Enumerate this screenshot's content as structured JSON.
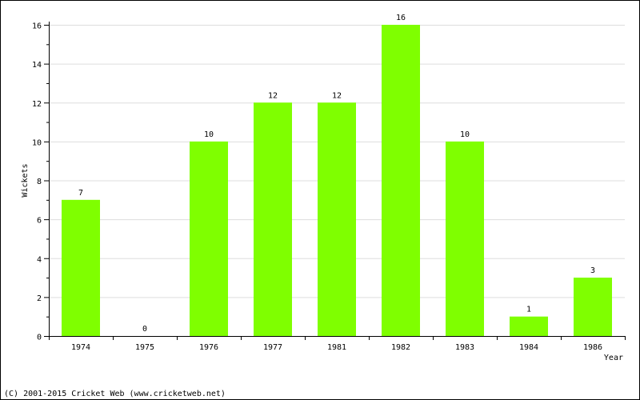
{
  "chart_data": {
    "type": "bar",
    "categories": [
      "1974",
      "1975",
      "1976",
      "1977",
      "1981",
      "1982",
      "1983",
      "1984",
      "1986"
    ],
    "values": [
      7,
      0,
      10,
      12,
      12,
      16,
      10,
      1,
      3
    ],
    "data_labels": [
      "7",
      "0",
      "10",
      "12",
      "12",
      "16",
      "10",
      "1",
      "3"
    ],
    "xlabel": "Year",
    "ylabel": "Wickets",
    "ylim": [
      0,
      16
    ],
    "yticks": [
      0,
      2,
      4,
      6,
      8,
      10,
      12,
      14,
      16
    ],
    "grid": true,
    "bar_color": "#7fff00",
    "zero_label_color": "#000080"
  },
  "footer": {
    "copyright": "(C) 2001-2015 Cricket Web (www.cricketweb.net)"
  }
}
